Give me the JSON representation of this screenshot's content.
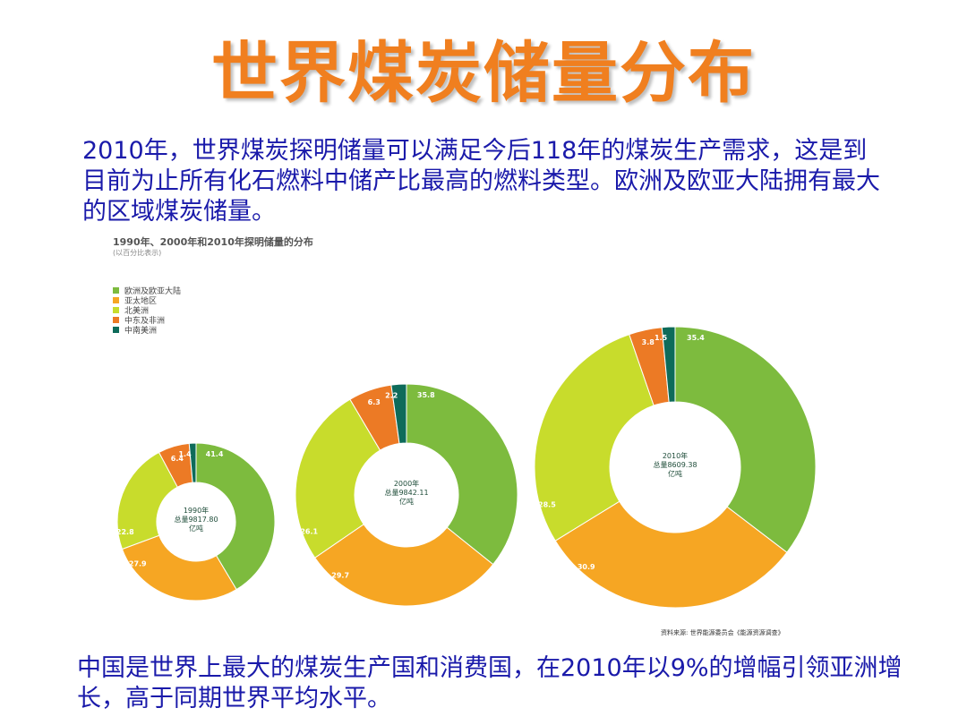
{
  "title": "世界煤炭储量分布",
  "intro_text": "2010年，世界煤炭探明储量可以满足今后118年的煤炭生产需求，这是到目前为止所有化石燃料中储产比最高的燃料类型。欧洲及欧亚大陆拥有最大的区域煤炭储量。",
  "conclusion_text": "中国是世界上最大的煤炭生产国和消费国，在2010年以9%的增幅引领亚洲增长，高于同期世界平均水平。",
  "source_text": "资料来源: 世界能源委员会《能源资源调查》",
  "chart_data": {
    "type": "pie",
    "title": "1990年、2000年和2010年探明储量的分布",
    "subtitle": "(以百分比表示)",
    "legend_position": "top-left",
    "categories": [
      "欧洲及欧亚大陆",
      "亚太地区",
      "北美洲",
      "中东及非洲",
      "中南美洲"
    ],
    "colors": [
      "#7dbb3e",
      "#f6a623",
      "#c8dc2c",
      "#ec7a25",
      "#0e6b5a"
    ],
    "series": [
      {
        "center_label": [
          "1990年",
          "总量9817.80",
          "亿吨"
        ],
        "values": [
          41.4,
          27.9,
          22.8,
          6.4,
          1.4
        ]
      },
      {
        "center_label": [
          "2000年",
          "总量9842.11",
          "亿吨"
        ],
        "values": [
          35.8,
          29.7,
          26.1,
          6.3,
          2.2
        ]
      },
      {
        "center_label": [
          "2010年",
          "总量8609.38",
          "亿吨"
        ],
        "values": [
          35.4,
          30.9,
          28.5,
          3.8,
          1.5
        ]
      }
    ]
  }
}
